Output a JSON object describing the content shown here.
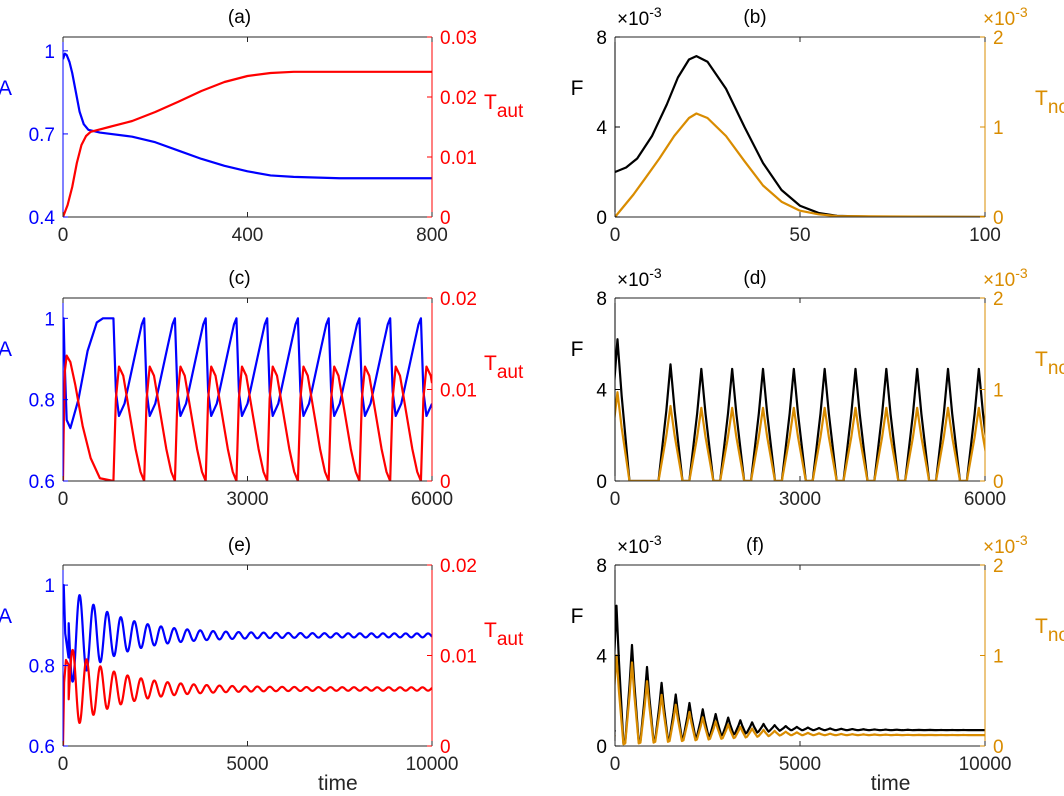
{
  "colors": {
    "blue": "#0000ff",
    "red": "#ff0000",
    "black": "#000000",
    "orange": "#d98c00"
  },
  "chart_data": [
    {
      "panel": "a",
      "type": "line",
      "title": "(a)",
      "xlabel": "",
      "xlim": [
        0,
        800
      ],
      "xticks": [
        "0",
        "400",
        "800"
      ],
      "left_axis": {
        "label": "A",
        "color": "blue",
        "ylim": [
          0.4,
          1.05
        ],
        "ticks": [
          "0.4",
          "0.7",
          "1"
        ]
      },
      "right_axis": {
        "label_main": "T",
        "label_sub": "aut",
        "color": "red",
        "ylim": [
          0,
          0.03
        ],
        "ticks": [
          "0",
          "0.01",
          "0.02",
          "0.03"
        ]
      },
      "series": [
        {
          "axis": "left",
          "color": "blue",
          "kind": "points",
          "points": [
            [
              0,
              0.97
            ],
            [
              4,
              0.99
            ],
            [
              8,
              0.985
            ],
            [
              14,
              0.96
            ],
            [
              20,
              0.92
            ],
            [
              28,
              0.85
            ],
            [
              36,
              0.78
            ],
            [
              45,
              0.735
            ],
            [
              55,
              0.715
            ],
            [
              80,
              0.705
            ],
            [
              150,
              0.69
            ],
            [
              200,
              0.67
            ],
            [
              250,
              0.64
            ],
            [
              300,
              0.61
            ],
            [
              350,
              0.585
            ],
            [
              400,
              0.565
            ],
            [
              450,
              0.55
            ],
            [
              500,
              0.545
            ],
            [
              600,
              0.54
            ],
            [
              800,
              0.54
            ]
          ]
        },
        {
          "axis": "right",
          "color": "red",
          "kind": "points",
          "points": [
            [
              0,
              0
            ],
            [
              5,
              0.001
            ],
            [
              10,
              0.002
            ],
            [
              20,
              0.005
            ],
            [
              30,
              0.009
            ],
            [
              40,
              0.012
            ],
            [
              50,
              0.0135
            ],
            [
              60,
              0.0142
            ],
            [
              100,
              0.015
            ],
            [
              150,
              0.016
            ],
            [
              200,
              0.0175
            ],
            [
              250,
              0.0192
            ],
            [
              300,
              0.021
            ],
            [
              350,
              0.0225
            ],
            [
              400,
              0.0235
            ],
            [
              450,
              0.024
            ],
            [
              500,
              0.0242
            ],
            [
              800,
              0.0242
            ]
          ]
        }
      ]
    },
    {
      "panel": "b",
      "type": "line",
      "title": "(b)",
      "xlabel": "",
      "xlim": [
        0,
        100
      ],
      "xticks": [
        "0",
        "50",
        "100"
      ],
      "left_axis": {
        "label": "F",
        "color": "black",
        "ylim": [
          0,
          8
        ],
        "ticks": [
          "0",
          "4",
          "8"
        ],
        "exponent": "×10",
        "exponent_power": "-3"
      },
      "right_axis": {
        "label_main": "T",
        "label_sub": "nor",
        "color": "orange",
        "ylim": [
          0,
          2
        ],
        "ticks": [
          "0",
          "1",
          "2"
        ],
        "exponent": "×10",
        "exponent_power": "-3"
      },
      "series": [
        {
          "axis": "left",
          "color": "black",
          "kind": "points",
          "points": [
            [
              0,
              2.0
            ],
            [
              3,
              2.2
            ],
            [
              6,
              2.6
            ],
            [
              10,
              3.6
            ],
            [
              14,
              5.0
            ],
            [
              17,
              6.2
            ],
            [
              20,
              7.0
            ],
            [
              22,
              7.15
            ],
            [
              25,
              6.9
            ],
            [
              30,
              5.7
            ],
            [
              35,
              4.0
            ],
            [
              40,
              2.4
            ],
            [
              45,
              1.2
            ],
            [
              50,
              0.5
            ],
            [
              55,
              0.18
            ],
            [
              60,
              0.05
            ],
            [
              70,
              0.01
            ],
            [
              100,
              0
            ]
          ]
        },
        {
          "axis": "right",
          "color": "orange",
          "kind": "points",
          "points": [
            [
              0,
              0.0
            ],
            [
              2,
              0.1
            ],
            [
              5,
              0.25
            ],
            [
              8,
              0.42
            ],
            [
              12,
              0.65
            ],
            [
              16,
              0.9
            ],
            [
              20,
              1.1
            ],
            [
              22,
              1.15
            ],
            [
              25,
              1.1
            ],
            [
              30,
              0.9
            ],
            [
              35,
              0.62
            ],
            [
              40,
              0.35
            ],
            [
              45,
              0.17
            ],
            [
              50,
              0.07
            ],
            [
              55,
              0.03
            ],
            [
              60,
              0.01
            ],
            [
              100,
              0
            ]
          ]
        }
      ]
    },
    {
      "panel": "c",
      "type": "line",
      "title": "(c)",
      "xlabel": "",
      "xlim": [
        0,
        6000
      ],
      "xticks": [
        "0",
        "3000",
        "6000"
      ],
      "left_axis": {
        "label": "A",
        "color": "blue",
        "ylim": [
          0.6,
          1.05
        ],
        "ticks": [
          "0.6",
          "0.8",
          "1"
        ]
      },
      "right_axis": {
        "label_main": "T",
        "label_sub": "aut",
        "color": "red",
        "ylim": [
          0,
          0.02
        ],
        "ticks": [
          "0",
          "0.01",
          "0.02"
        ]
      },
      "series": [
        {
          "axis": "left",
          "color": "blue",
          "kind": "relax",
          "first": [
            [
              0,
              0.95
            ],
            [
              10,
              1.0
            ],
            [
              25,
              0.9
            ],
            [
              60,
              0.75
            ],
            [
              120,
              0.73
            ],
            [
              250,
              0.8
            ],
            [
              400,
              0.92
            ],
            [
              550,
              0.99
            ],
            [
              650,
              1.0
            ],
            [
              820,
              1.0
            ]
          ],
          "start": 820,
          "period": 500,
          "count": 11,
          "cycle": [
            [
              0,
              1.0
            ],
            [
              40,
              0.82
            ],
            [
              90,
              0.76
            ],
            [
              180,
              0.79
            ],
            [
              280,
              0.86
            ],
            [
              380,
              0.93
            ],
            [
              460,
              0.985
            ],
            [
              500,
              1.0
            ]
          ]
        },
        {
          "axis": "right",
          "color": "red",
          "kind": "relax",
          "first": [
            [
              0,
              0.0
            ],
            [
              10,
              0.005
            ],
            [
              30,
              0.012
            ],
            [
              60,
              0.0137
            ],
            [
              120,
              0.013
            ],
            [
              200,
              0.0105
            ],
            [
              320,
              0.006
            ],
            [
              450,
              0.0025
            ],
            [
              600,
              0.0003
            ],
            [
              820,
              0.0
            ]
          ],
          "start": 820,
          "period": 500,
          "count": 11,
          "cycle": [
            [
              0,
              0.0
            ],
            [
              40,
              0.009
            ],
            [
              90,
              0.0125
            ],
            [
              160,
              0.0115
            ],
            [
              260,
              0.0075
            ],
            [
              360,
              0.0035
            ],
            [
              440,
              0.001
            ],
            [
              500,
              0.0
            ]
          ]
        }
      ]
    },
    {
      "panel": "d",
      "type": "line",
      "title": "(d)",
      "xlabel": "",
      "xlim": [
        0,
        6000
      ],
      "xticks": [
        "0",
        "3000",
        "6000"
      ],
      "left_axis": {
        "label": "F",
        "color": "black",
        "ylim": [
          0,
          8
        ],
        "ticks": [
          "0",
          "4",
          "8"
        ],
        "exponent": "×10",
        "exponent_power": "-3"
      },
      "right_axis": {
        "label_main": "T",
        "label_sub": "nor",
        "color": "orange",
        "ylim": [
          0,
          2
        ],
        "ticks": [
          "0",
          "1",
          "2"
        ],
        "exponent": "×10",
        "exponent_power": "-3"
      },
      "series": [
        {
          "axis": "left",
          "color": "black",
          "kind": "spikes",
          "width": 12,
          "base": 0,
          "peaks": [
            [
              40,
              6.2
            ],
            [
              900,
              5.1
            ],
            [
              1400,
              4.9
            ],
            [
              1900,
              4.9
            ],
            [
              2400,
              4.9
            ],
            [
              2900,
              4.9
            ],
            [
              3400,
              4.9
            ],
            [
              3900,
              4.9
            ],
            [
              4400,
              4.9
            ],
            [
              4900,
              4.9
            ],
            [
              5400,
              4.9
            ],
            [
              5900,
              4.9
            ]
          ]
        },
        {
          "axis": "right",
          "color": "orange",
          "kind": "spikes",
          "width": 12,
          "base": 0,
          "peaks": [
            [
              40,
              0.97
            ],
            [
              900,
              0.82
            ],
            [
              1400,
              0.8
            ],
            [
              1900,
              0.8
            ],
            [
              2400,
              0.8
            ],
            [
              2900,
              0.8
            ],
            [
              3400,
              0.8
            ],
            [
              3900,
              0.8
            ],
            [
              4400,
              0.8
            ],
            [
              4900,
              0.8
            ],
            [
              5400,
              0.8
            ],
            [
              5900,
              0.8
            ]
          ]
        }
      ]
    },
    {
      "panel": "e",
      "type": "line",
      "title": "(e)",
      "xlabel": "time",
      "xlim": [
        0,
        10000
      ],
      "xticks": [
        "0",
        "5000",
        "10000"
      ],
      "left_axis": {
        "label": "A",
        "color": "blue",
        "ylim": [
          0.6,
          1.05
        ],
        "ticks": [
          "0.6",
          "0.8",
          "1"
        ]
      },
      "right_axis": {
        "label_main": "T",
        "label_sub": "aut",
        "color": "red",
        "ylim": [
          0,
          0.02
        ],
        "ticks": [
          "0",
          "0.01",
          "0.02"
        ]
      },
      "series": [
        {
          "axis": "left",
          "color": "blue",
          "kind": "damped",
          "base": 0.875,
          "amp": 0.12,
          "phase": 0.2,
          "first": [
            [
              0,
              0.95
            ],
            [
              20,
              1.0
            ],
            [
              60,
              0.88
            ],
            [
              150,
              0.82
            ]
          ],
          "periods": [
            [
              0,
              380
            ],
            [
              10000,
              300
            ]
          ],
          "decay": 1300
        },
        {
          "axis": "right",
          "color": "red",
          "kind": "damped",
          "base": 0.0063,
          "amp": -0.0045,
          "phase": 0.2,
          "first": [
            [
              0,
              0.0
            ],
            [
              30,
              0.007
            ],
            [
              80,
              0.0095
            ],
            [
              150,
              0.009
            ]
          ],
          "periods": [
            [
              0,
              380
            ],
            [
              10000,
              300
            ]
          ],
          "decay": 1300
        }
      ]
    },
    {
      "panel": "f",
      "type": "line",
      "title": "(f)",
      "xlabel": "time",
      "xlim": [
        0,
        10000
      ],
      "xticks": [
        "0",
        "5000",
        "10000"
      ],
      "left_axis": {
        "label": "F",
        "color": "black",
        "ylim": [
          0,
          8
        ],
        "ticks": [
          "0",
          "4",
          "8"
        ],
        "exponent": "×10",
        "exponent_power": "-3"
      },
      "right_axis": {
        "label_main": "T",
        "label_sub": "nor",
        "color": "orange",
        "ylim": [
          0,
          2
        ],
        "ticks": [
          "0",
          "1",
          "2"
        ],
        "exponent": "×10",
        "exponent_power": "-3"
      },
      "series": [
        {
          "axis": "left",
          "color": "black",
          "kind": "dampedspikes",
          "base": 0.7,
          "first_peak": 6.2,
          "second_peak": 4.5,
          "decay": 1400,
          "start": 40,
          "period0": 420,
          "period1": 300
        },
        {
          "axis": "right",
          "color": "orange",
          "kind": "dampedspikes",
          "base": 0.12,
          "first_peak": 1.0,
          "second_peak": 0.93,
          "decay": 1400,
          "start": 40,
          "period0": 420,
          "period1": 300
        }
      ]
    }
  ]
}
